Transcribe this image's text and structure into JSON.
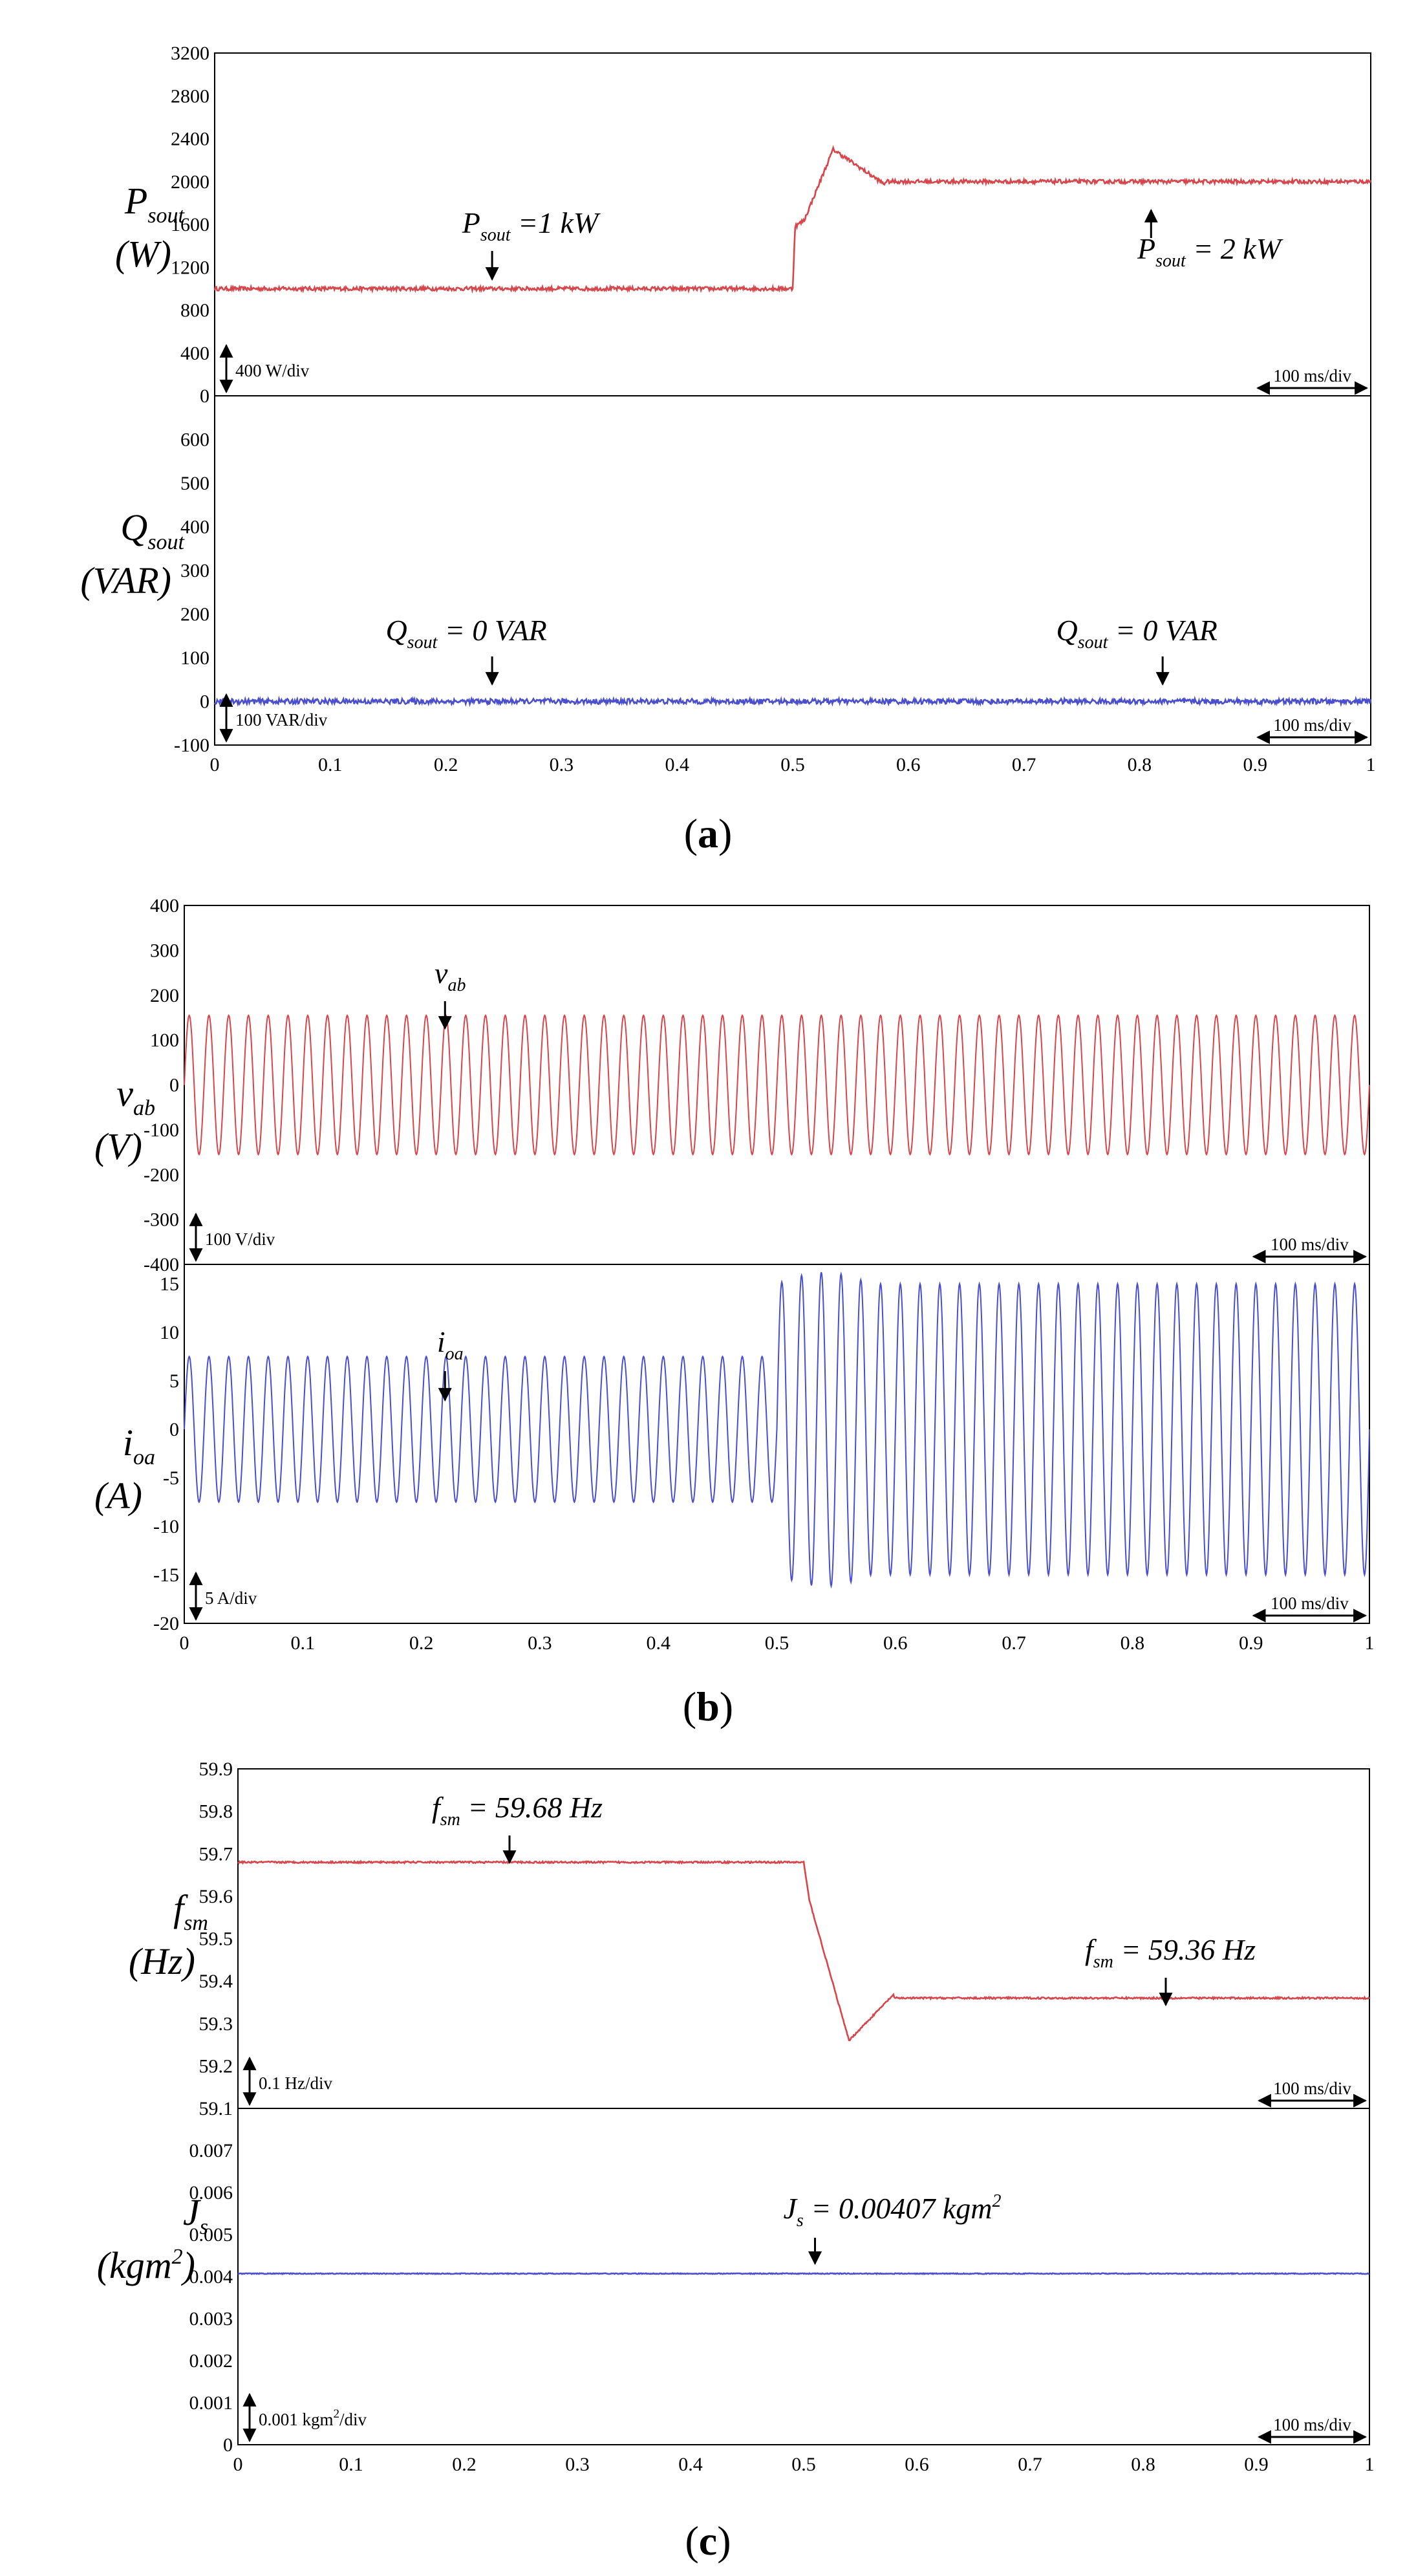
{
  "chart_data": [
    {
      "type": "line",
      "panel": "a",
      "title": "",
      "xlabel": "",
      "ylabel": "Psout (W)",
      "y_label_main": "P",
      "y_label_sub": "sout",
      "y_label_unit": "(W)",
      "ylim": [
        0,
        3200
      ],
      "xlim": [
        0,
        1
      ],
      "y_ticks": [
        "0",
        "400",
        "800",
        "1200",
        "1600",
        "2000",
        "2400",
        "2800",
        "3200"
      ],
      "x_ticks": [],
      "grid": false,
      "color": "#d8454a",
      "trace": {
        "initial": 1000,
        "step_time": 0.5,
        "final": 2000,
        "transient": "overshoot to ~2300 at t=0.53 s",
        "noise": 18
      },
      "annotations": [
        {
          "main": "P",
          "sub": "sout",
          "text": " =1 kW",
          "t": 0.24
        },
        {
          "main": "P",
          "sub": "sout",
          "text": " = 2 kW",
          "t": 0.81
        }
      ],
      "vscale": "400 W/div",
      "hscale": "100 ms/div"
    },
    {
      "type": "line",
      "panel": "a",
      "ylabel": "Qsout (VAR)",
      "y_label_main": "Q",
      "y_label_sub": "sout",
      "y_label_unit": "(VAR)",
      "ylim": [
        -100,
        700
      ],
      "xlim": [
        0,
        1
      ],
      "y_ticks": [
        "-100",
        "0",
        "100",
        "200",
        "300",
        "400",
        "500",
        "600"
      ],
      "x_ticks": [
        "0",
        "0.1",
        "0.2",
        "0.3",
        "0.4",
        "0.5",
        "0.6",
        "0.7",
        "0.8",
        "0.9",
        "1"
      ],
      "grid": false,
      "color": "#4a4fcf",
      "trace": {
        "value": 0,
        "noise": 6
      },
      "annotations": [
        {
          "main": "Q",
          "sub": "sout",
          "text": " = 0 VAR",
          "t": 0.24
        },
        {
          "main": "Q",
          "sub": "sout",
          "text": " = 0 VAR",
          "t": 0.82
        }
      ],
      "vscale": "100 VAR/div",
      "hscale": "100 ms/div"
    },
    {
      "type": "line",
      "panel": "b",
      "ylabel": "vab (V)",
      "y_label_main": "v",
      "y_label_sub": "ab",
      "y_label_unit": "(V)",
      "ylim": [
        -400,
        400
      ],
      "xlim": [
        0,
        1
      ],
      "y_ticks": [
        "-400",
        "-300",
        "-200",
        "-100",
        "0",
        "100",
        "200",
        "300",
        "400"
      ],
      "x_ticks": [],
      "grid": false,
      "color": "#d8454a",
      "trace": {
        "frequency_hz": 60,
        "amplitude": 155
      },
      "annotations": [
        {
          "main": "v",
          "sub": "ab",
          "text": "",
          "t": 0.22
        }
      ],
      "vscale": "100 V/div",
      "hscale": "100 ms/div"
    },
    {
      "type": "line",
      "panel": "b",
      "ylabel": "ioa (A)",
      "y_label_main": "i",
      "y_label_sub": "oa",
      "y_label_unit": "(A)",
      "ylim": [
        -20,
        17
      ],
      "xlim": [
        0,
        1
      ],
      "y_ticks": [
        "-20",
        "-15",
        "-10",
        "-5",
        "0",
        "5",
        "10",
        "15"
      ],
      "x_ticks": [
        "0",
        "0.1",
        "0.2",
        "0.3",
        "0.4",
        "0.5",
        "0.6",
        "0.7",
        "0.8",
        "0.9",
        "1"
      ],
      "grid": false,
      "color": "#4a4fcf",
      "trace": {
        "frequency_hz": 60,
        "amplitude_before": 7.5,
        "amplitude_after": 15,
        "step_time": 0.5
      },
      "annotations": [
        {
          "main": "i",
          "sub": "oa",
          "text": "",
          "t": 0.22
        }
      ],
      "vscale": "5 A/div",
      "hscale": "100 ms/div"
    },
    {
      "type": "line",
      "panel": "c",
      "ylabel": "fsm (Hz)",
      "y_label_main": "f",
      "y_label_sub": "sm",
      "y_label_unit": "(Hz)",
      "ylim": [
        59.1,
        59.9
      ],
      "xlim": [
        0,
        1
      ],
      "y_ticks": [
        "59.1",
        "59.2",
        "59.3",
        "59.4",
        "59.5",
        "59.6",
        "59.7",
        "59.8",
        "59.9"
      ],
      "x_ticks": [],
      "grid": false,
      "color": "#d8454a",
      "trace": {
        "initial": 59.68,
        "step_time": 0.5,
        "final": 59.36,
        "transient": "undershoot to ~59.26 at t=0.54 s"
      },
      "annotations": [
        {
          "main": "f",
          "sub": "sm",
          "text": " = 59.68 Hz",
          "t": 0.24
        },
        {
          "main": "f",
          "sub": "sm",
          "text": " = 59.36 Hz",
          "t": 0.82
        }
      ],
      "vscale": "0.1 Hz/div",
      "hscale": "100 ms/div"
    },
    {
      "type": "line",
      "panel": "c",
      "ylabel": "Js (kgm2)",
      "y_label_main": "J",
      "y_label_sub": "s",
      "y_label_unit": "(kgm",
      "ylim": [
        0,
        0.008
      ],
      "xlim": [
        0,
        1
      ],
      "y_ticks": [
        "0",
        "0.001",
        "0.002",
        "0.003",
        "0.004",
        "0.005",
        "0.006",
        "0.007"
      ],
      "x_ticks": [
        "0",
        "0.1",
        "0.2",
        "0.3",
        "0.4",
        "0.5",
        "0.6",
        "0.7",
        "0.8",
        "0.9",
        "1"
      ],
      "grid": false,
      "color": "#4a4fcf",
      "trace": {
        "value": 0.00407
      },
      "annotations": [
        {
          "main": "J",
          "sub": "s",
          "text": " = 0.00407 kgm",
          "sup": "2",
          "t": 0.51
        }
      ],
      "vscale_pre": "0.001 kgm",
      "vscale_sup": "2",
      "vscale_post": "/div",
      "hscale": "100 ms/div"
    }
  ],
  "captions": [
    {
      "open": "(",
      "letter": "a",
      "close": ")"
    },
    {
      "open": "(",
      "letter": "b",
      "close": ")"
    },
    {
      "open": "(",
      "letter": "c",
      "close": ")"
    }
  ]
}
